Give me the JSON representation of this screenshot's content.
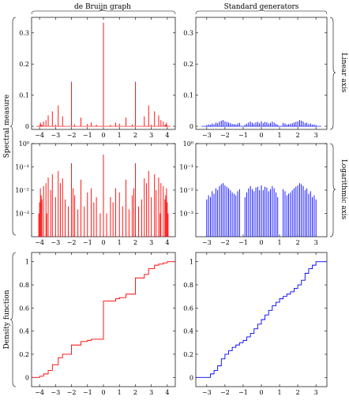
{
  "headers": {
    "col_left": "de Bruijn graph",
    "col_right": "Standard generators",
    "row_spectral": "Spectral measure",
    "row_density": "Density function",
    "right_linear": "Linear axis",
    "right_log": "Logarithmic axis"
  },
  "colors": {
    "red": "#ff0000",
    "blue": "#0000ff"
  },
  "chart_data": [
    {
      "id": "debruijn-linear",
      "type": "bar",
      "xlim": [
        -4.5,
        4.5
      ],
      "ylim": [
        -0.01,
        0.35
      ],
      "xticks": [
        -4,
        -3,
        -2,
        -1,
        0,
        1,
        2,
        3,
        4
      ],
      "xtick_labels": [
        "−4",
        "−3",
        "−2",
        "−1",
        "0",
        "1",
        "2",
        "3",
        "4"
      ],
      "yticks": [
        0,
        0.1,
        0.2,
        0.3
      ],
      "ytick_labels": [
        "0",
        "0.1",
        "0.2",
        "0.3"
      ],
      "grid": false,
      "x": [
        0,
        -2,
        2,
        -2.83,
        2.83,
        -3.2,
        3.2,
        -2.56,
        2.56,
        -3.46,
        3.46,
        -3.75,
        3.75,
        -3.95,
        3.95,
        -3.6,
        3.6,
        -1.41,
        1.41,
        -0.77,
        0.77,
        -1.0,
        1.0,
        -3.0,
        3.0,
        -1.8,
        1.8,
        -0.44,
        0.44,
        -3.9,
        3.9,
        -3.85,
        3.85,
        -4.0,
        4.0
      ],
      "values": [
        0.333,
        0.143,
        0.143,
        0.067,
        0.067,
        0.048,
        0.048,
        0.032,
        0.032,
        0.035,
        0.035,
        0.015,
        0.015,
        0.012,
        0.012,
        0.02,
        0.02,
        0.028,
        0.028,
        0.012,
        0.012,
        0.008,
        0.008,
        0.005,
        0.005,
        0.006,
        0.006,
        0.005,
        0.005,
        0.006,
        0.006,
        0.004,
        0.004,
        0.003,
        0.003
      ]
    },
    {
      "id": "standard-linear",
      "type": "bar",
      "xlim": [
        -3.6,
        3.6
      ],
      "ylim": [
        -0.01,
        0.35
      ],
      "xticks": [
        -3,
        -2,
        -1,
        0,
        1,
        2,
        3
      ],
      "xtick_labels": [
        "−3",
        "−2",
        "−1",
        "0",
        "1",
        "2",
        "3"
      ],
      "yticks": [
        0,
        0.1,
        0.2,
        0.3
      ],
      "ytick_labels": [
        "0",
        "0.1",
        "0.2",
        "0.3"
      ],
      "grid": false,
      "note_values": "dense comb of small spikes between -3 and 3 with gaps near -1 and 1; heights up to about 0.02",
      "x": [
        -3.0,
        -2.9,
        -2.8,
        -2.7,
        -2.6,
        -2.5,
        -2.4,
        -2.3,
        -2.2,
        -2.1,
        -2.0,
        -1.9,
        -1.8,
        -1.7,
        -1.6,
        -1.5,
        -1.4,
        -1.3,
        -1.2,
        -0.9,
        -0.8,
        -0.7,
        -0.6,
        -0.5,
        -0.4,
        -0.3,
        -0.2,
        -0.1,
        0.0,
        0.1,
        0.2,
        0.3,
        0.4,
        0.5,
        0.6,
        0.7,
        0.8,
        0.9,
        1.2,
        1.3,
        1.4,
        1.5,
        1.6,
        1.7,
        1.8,
        1.9,
        2.0,
        2.1,
        2.2,
        2.3,
        2.4,
        2.5,
        2.6,
        2.7,
        2.8,
        2.9,
        3.0
      ],
      "values": [
        0.004,
        0.006,
        0.005,
        0.009,
        0.007,
        0.012,
        0.01,
        0.015,
        0.018,
        0.02,
        0.016,
        0.014,
        0.012,
        0.01,
        0.008,
        0.007,
        0.006,
        0.009,
        0.011,
        0.005,
        0.008,
        0.012,
        0.015,
        0.011,
        0.009,
        0.013,
        0.014,
        0.01,
        0.016,
        0.01,
        0.014,
        0.013,
        0.009,
        0.011,
        0.015,
        0.012,
        0.008,
        0.005,
        0.011,
        0.009,
        0.006,
        0.007,
        0.008,
        0.01,
        0.012,
        0.014,
        0.016,
        0.02,
        0.018,
        0.015,
        0.01,
        0.012,
        0.007,
        0.009,
        0.005,
        0.006,
        0.004
      ]
    },
    {
      "id": "debruijn-log",
      "type": "bar",
      "yscale": "log",
      "xlim": [
        -4.5,
        4.5
      ],
      "ylim": [
        0.0001,
        1
      ],
      "xticks": [
        -4,
        -3,
        -2,
        -1,
        0,
        1,
        2,
        3,
        4
      ],
      "xtick_labels": [
        "−4",
        "−3",
        "−2",
        "−1",
        "0",
        "1",
        "2",
        "3",
        "4"
      ],
      "yticks": [
        0.001,
        0.01,
        0.1,
        1
      ],
      "ytick_labels": [
        "10⁻³",
        "10⁻²",
        "10⁻¹",
        "10⁰"
      ],
      "grid": false,
      "x": [
        0,
        -2,
        2,
        -2.83,
        2.83,
        -3.2,
        3.2,
        -2.56,
        2.56,
        -3.46,
        3.46,
        -3.75,
        3.75,
        -3.95,
        3.95,
        -3.6,
        3.6,
        -1.41,
        1.41,
        -0.77,
        0.77,
        -1.0,
        1.0,
        -3.0,
        3.0,
        -1.8,
        1.8,
        -0.44,
        0.44,
        -3.9,
        3.9,
        -3.85,
        3.85,
        -4.0,
        4.0,
        -2.2,
        2.2,
        -1.6,
        1.6,
        -1.2,
        1.2,
        -0.2,
        0.2,
        -2.4,
        2.4,
        -3.3,
        3.3,
        -0.6,
        0.6,
        -1.9,
        1.9,
        -2.7,
        2.7,
        -3.55,
        3.55,
        -4.05,
        4.05
      ],
      "values": [
        0.333,
        0.143,
        0.143,
        0.067,
        0.067,
        0.048,
        0.048,
        0.032,
        0.032,
        0.035,
        0.035,
        0.015,
        0.015,
        0.012,
        0.012,
        0.02,
        0.02,
        0.028,
        0.028,
        0.012,
        0.012,
        0.008,
        0.008,
        0.005,
        0.005,
        0.006,
        0.006,
        0.005,
        0.005,
        0.006,
        0.006,
        0.004,
        0.004,
        0.003,
        0.003,
        0.002,
        0.002,
        0.0015,
        0.0015,
        0.002,
        0.002,
        0.001,
        0.001,
        0.004,
        0.004,
        0.01,
        0.01,
        0.003,
        0.003,
        0.012,
        0.012,
        0.02,
        0.02,
        0.001,
        0.001,
        0.001,
        0.001
      ]
    },
    {
      "id": "standard-log",
      "type": "bar",
      "yscale": "log",
      "xlim": [
        -3.6,
        3.6
      ],
      "ylim": [
        0.0001,
        1
      ],
      "xticks": [
        -3,
        -2,
        -1,
        0,
        1,
        2,
        3
      ],
      "xtick_labels": [
        "−3",
        "−2",
        "−1",
        "0",
        "1",
        "2",
        "3"
      ],
      "yticks": [
        0.001,
        0.01,
        0.1,
        1
      ],
      "ytick_labels": [
        "10⁻³",
        "10⁻²",
        "10⁻¹",
        "10⁰"
      ],
      "grid": false,
      "note_values": "many spikes between -3 and 3 (gaps near -1 and 1); most around 2e-3, some reaching about 0.02",
      "x": [
        -3.0,
        -2.9,
        -2.8,
        -2.7,
        -2.6,
        -2.5,
        -2.4,
        -2.3,
        -2.2,
        -2.1,
        -2.0,
        -1.9,
        -1.8,
        -1.7,
        -1.6,
        -1.5,
        -1.4,
        -1.3,
        -1.2,
        -0.9,
        -0.8,
        -0.7,
        -0.6,
        -0.5,
        -0.4,
        -0.3,
        -0.2,
        -0.1,
        0.0,
        0.1,
        0.2,
        0.3,
        0.4,
        0.5,
        0.6,
        0.7,
        0.8,
        0.9,
        1.2,
        1.3,
        1.4,
        1.5,
        1.6,
        1.7,
        1.8,
        1.9,
        2.0,
        2.1,
        2.2,
        2.3,
        2.4,
        2.5,
        2.6,
        2.7,
        2.8,
        2.9,
        3.0
      ],
      "values": [
        0.004,
        0.006,
        0.005,
        0.009,
        0.007,
        0.012,
        0.01,
        0.015,
        0.018,
        0.02,
        0.016,
        0.014,
        0.012,
        0.01,
        0.008,
        0.007,
        0.006,
        0.009,
        0.011,
        0.005,
        0.008,
        0.012,
        0.015,
        0.011,
        0.009,
        0.013,
        0.014,
        0.01,
        0.016,
        0.01,
        0.014,
        0.013,
        0.009,
        0.011,
        0.015,
        0.012,
        0.008,
        0.005,
        0.011,
        0.009,
        0.006,
        0.007,
        0.008,
        0.01,
        0.012,
        0.014,
        0.016,
        0.02,
        0.018,
        0.015,
        0.01,
        0.012,
        0.007,
        0.009,
        0.005,
        0.006,
        0.004
      ]
    },
    {
      "id": "debruijn-cdf",
      "type": "line",
      "step": true,
      "xlim": [
        -4.5,
        4.5
      ],
      "ylim": [
        -0.08,
        1.08
      ],
      "xticks": [
        -4,
        -3,
        -2,
        -1,
        0,
        1,
        2,
        3,
        4
      ],
      "xtick_labels": [
        "−4",
        "−3",
        "−2",
        "−1",
        "0",
        "1",
        "2",
        "3",
        "4"
      ],
      "yticks": [
        0,
        0.2,
        0.4,
        0.6,
        0.8,
        1
      ],
      "ytick_labels": [
        "0",
        "0.2",
        "0.4",
        "0.6",
        "0.8",
        "1"
      ],
      "grid": false,
      "x": [
        -4.5,
        -4.0,
        -3.75,
        -3.46,
        -3.2,
        -2.83,
        -2.56,
        -2.0,
        -1.41,
        -1.0,
        -0.77,
        0.0,
        0.77,
        1.0,
        1.41,
        2.0,
        2.56,
        2.83,
        3.2,
        3.46,
        3.75,
        4.0,
        4.5
      ],
      "values": [
        0.0,
        0.01,
        0.03,
        0.06,
        0.11,
        0.17,
        0.2,
        0.28,
        0.31,
        0.32,
        0.33,
        0.66,
        0.68,
        0.69,
        0.72,
        0.86,
        0.89,
        0.94,
        0.97,
        0.98,
        0.99,
        1.0,
        1.0
      ]
    },
    {
      "id": "standard-cdf",
      "type": "line",
      "step": true,
      "xlim": [
        -3.6,
        3.6
      ],
      "ylim": [
        -0.08,
        1.08
      ],
      "xticks": [
        -3,
        -2,
        -1,
        0,
        1,
        2,
        3
      ],
      "xtick_labels": [
        "−3",
        "−2",
        "−1",
        "0",
        "1",
        "2",
        "3"
      ],
      "yticks": [
        0,
        0.2,
        0.4,
        0.6,
        0.8,
        1
      ],
      "ytick_labels": [
        "0",
        "0.2",
        "0.4",
        "0.6",
        "0.8",
        "1"
      ],
      "grid": false,
      "x": [
        -3.6,
        -3.0,
        -2.8,
        -2.6,
        -2.4,
        -2.2,
        -2.0,
        -1.8,
        -1.6,
        -1.4,
        -1.2,
        -1.0,
        -0.8,
        -0.6,
        -0.4,
        -0.2,
        0.0,
        0.2,
        0.4,
        0.6,
        0.8,
        1.0,
        1.2,
        1.4,
        1.6,
        1.8,
        2.0,
        2.2,
        2.4,
        2.6,
        2.8,
        3.0,
        3.6
      ],
      "values": [
        0.0,
        0.0,
        0.03,
        0.06,
        0.1,
        0.16,
        0.2,
        0.23,
        0.26,
        0.28,
        0.3,
        0.32,
        0.35,
        0.38,
        0.42,
        0.46,
        0.5,
        0.54,
        0.58,
        0.62,
        0.65,
        0.68,
        0.7,
        0.72,
        0.74,
        0.77,
        0.8,
        0.84,
        0.9,
        0.94,
        0.97,
        1.0,
        1.0
      ]
    }
  ]
}
